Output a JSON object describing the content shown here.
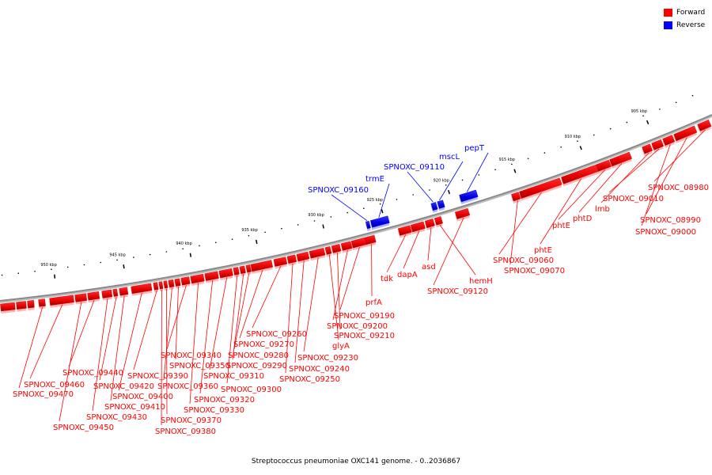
{
  "legend": [
    {
      "label": "Forward",
      "color": "#ff0000"
    },
    {
      "label": "Reverse",
      "color": "#0000ff"
    }
  ],
  "caption": "Streptococcus pneumoniae OXC141 genome. - 0..2036867",
  "colors": {
    "forward": "#ff0000",
    "reverse": "#0000ff",
    "backbone": "#888888"
  },
  "ticks": [
    "905 kbp",
    "910 kbp",
    "915 kbp",
    "920 kbp",
    "925 kbp",
    "930 kbp",
    "935 kbp",
    "940 kbp",
    "945 kbp",
    "950 kbp"
  ],
  "genes": [
    {
      "name": "SPNOXC_08980",
      "strand": "forward"
    },
    {
      "name": "SPNOXC_08990",
      "strand": "forward"
    },
    {
      "name": "SPNOXC_09000",
      "strand": "forward"
    },
    {
      "name": "SPNOXC_09010",
      "strand": "forward"
    },
    {
      "name": "lmb",
      "strand": "forward"
    },
    {
      "name": "phtD",
      "strand": "forward"
    },
    {
      "name": "phtE",
      "strand": "forward"
    },
    {
      "name": "phtE",
      "strand": "forward"
    },
    {
      "name": "SPNOXC_09060",
      "strand": "forward"
    },
    {
      "name": "SPNOXC_09070",
      "strand": "forward"
    },
    {
      "name": "pepT",
      "strand": "reverse"
    },
    {
      "name": "mscL",
      "strand": "reverse"
    },
    {
      "name": "SPNOXC_09110",
      "strand": "reverse"
    },
    {
      "name": "SPNOXC_09120",
      "strand": "forward"
    },
    {
      "name": "hemH",
      "strand": "forward"
    },
    {
      "name": "asd",
      "strand": "forward"
    },
    {
      "name": "dapA",
      "strand": "forward"
    },
    {
      "name": "tdk",
      "strand": "forward"
    },
    {
      "name": "trmE",
      "strand": "reverse"
    },
    {
      "name": "SPNOXC_09160",
      "strand": "reverse"
    },
    {
      "name": "prfA",
      "strand": "forward"
    },
    {
      "name": "SPNOXC_09190",
      "strand": "forward"
    },
    {
      "name": "SPNOXC_09200",
      "strand": "forward"
    },
    {
      "name": "SPNOXC_09210",
      "strand": "forward"
    },
    {
      "name": "glyA",
      "strand": "forward"
    },
    {
      "name": "SPNOXC_09230",
      "strand": "forward"
    },
    {
      "name": "SPNOXC_09240",
      "strand": "forward"
    },
    {
      "name": "SPNOXC_09250",
      "strand": "forward"
    },
    {
      "name": "SPNOXC_09260",
      "strand": "forward"
    },
    {
      "name": "SPNOXC_09270",
      "strand": "forward"
    },
    {
      "name": "SPNOXC_09280",
      "strand": "forward"
    },
    {
      "name": "SPNOXC_09290",
      "strand": "forward"
    },
    {
      "name": "SPNOXC_09300",
      "strand": "forward"
    },
    {
      "name": "SPNOXC_09310",
      "strand": "forward"
    },
    {
      "name": "SPNOXC_09320",
      "strand": "forward"
    },
    {
      "name": "SPNOXC_09330",
      "strand": "forward"
    },
    {
      "name": "SPNOXC_09340",
      "strand": "forward"
    },
    {
      "name": "SPNOXC_09350",
      "strand": "forward"
    },
    {
      "name": "SPNOXC_09360",
      "strand": "forward"
    },
    {
      "name": "SPNOXC_09370",
      "strand": "forward"
    },
    {
      "name": "SPNOXC_09380",
      "strand": "forward"
    },
    {
      "name": "SPNOXC_09390",
      "strand": "forward"
    },
    {
      "name": "SPNOXC_09400",
      "strand": "forward"
    },
    {
      "name": "SPNOXC_09410",
      "strand": "forward"
    },
    {
      "name": "SPNOXC_09420",
      "strand": "forward"
    },
    {
      "name": "SPNOXC_09430",
      "strand": "forward"
    },
    {
      "name": "SPNOXC_09440",
      "strand": "forward"
    },
    {
      "name": "SPNOXC_09450",
      "strand": "forward"
    },
    {
      "name": "SPNOXC_09460",
      "strand": "forward"
    },
    {
      "name": "SPNOXC_09470",
      "strand": "forward"
    }
  ]
}
